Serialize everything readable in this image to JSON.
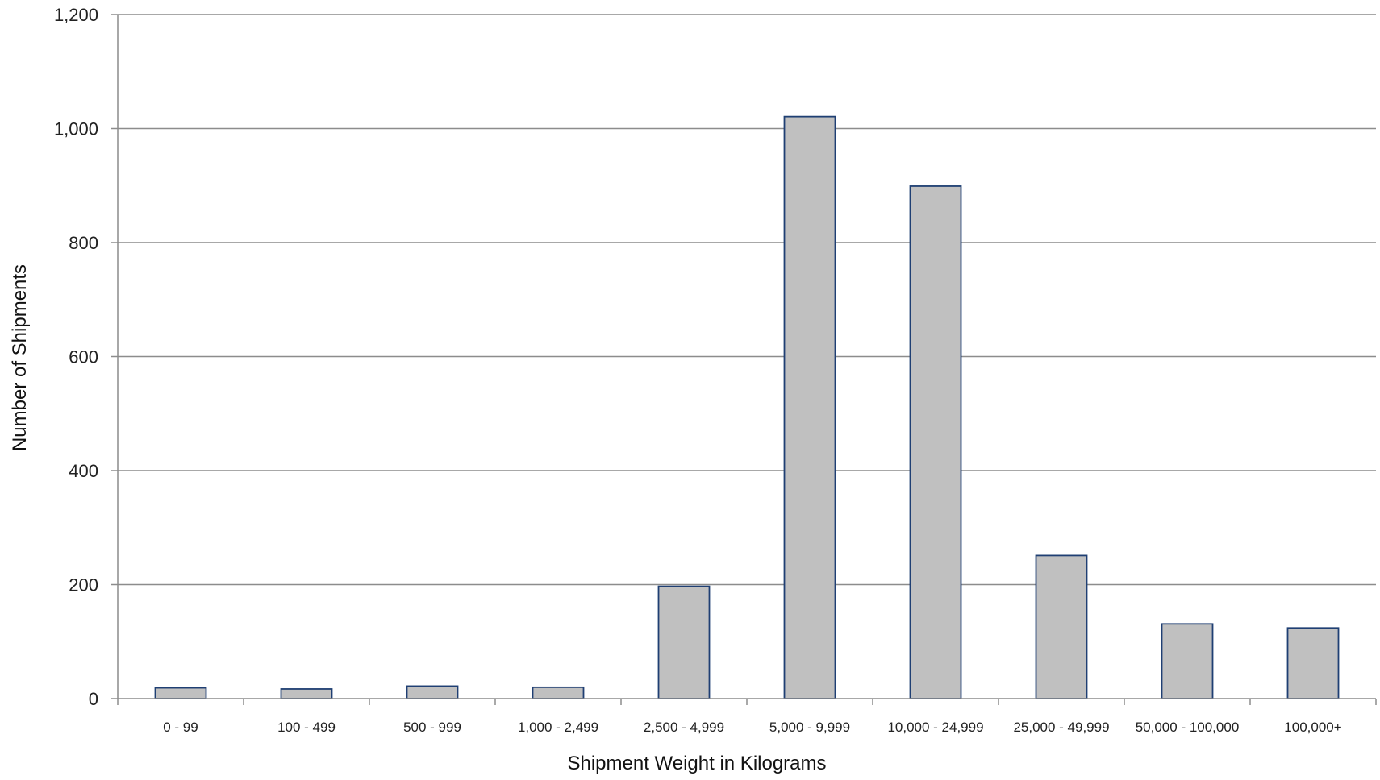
{
  "chart_data": {
    "type": "bar",
    "title": "",
    "xlabel": "Shipment Weight in Kilograms",
    "ylabel": "Number of Shipments",
    "categories": [
      "0 - 99",
      "100 - 499",
      "500 - 999",
      "1,000 - 2,499",
      "2,500 - 4,999",
      "5,000 - 9,999",
      "10,000 - 24,999",
      "25,000 - 49,999",
      "50,000 - 100,000",
      "100,000+"
    ],
    "values": [
      19,
      17,
      22,
      20,
      197,
      1021,
      899,
      251,
      131,
      124
    ],
    "ylim": [
      0,
      1200
    ],
    "yticks": [
      0,
      200,
      400,
      600,
      800,
      1000,
      1200
    ],
    "ytick_labels": [
      "0",
      "200",
      "400",
      "600",
      "800",
      "1,000",
      "1,200"
    ],
    "grid": true,
    "legend": "none",
    "colors": {
      "bar_fill": "#c0c0c0",
      "bar_stroke": "#1f3f73",
      "grid": "#8c8c8c",
      "axis": "#8c8c8c"
    }
  }
}
